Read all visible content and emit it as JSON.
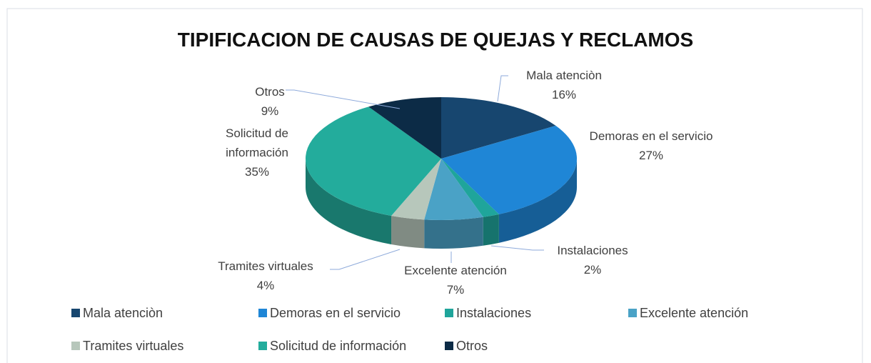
{
  "chart_data": {
    "type": "pie3d",
    "title": "TIPIFICACION DE CAUSAS DE QUEJAS Y RECLAMOS",
    "categories": [
      "Mala atenciòn",
      "Demoras en el servicio",
      "Instalaciones",
      "Excelente atención",
      "Tramites virtuales",
      "Solicitud de información",
      "Otros"
    ],
    "values": [
      16,
      27,
      2,
      7,
      4,
      35,
      9
    ],
    "value_labels": [
      "16%",
      "27%",
      "2%",
      "7%",
      "4%",
      "35%",
      "9%"
    ],
    "colors": [
      "#17466f",
      "#1f86d6",
      "#1fa59b",
      "#4aa2c6",
      "#b7c7bb",
      "#23ac9c",
      "#0c2b46"
    ],
    "legend": "bottom"
  }
}
